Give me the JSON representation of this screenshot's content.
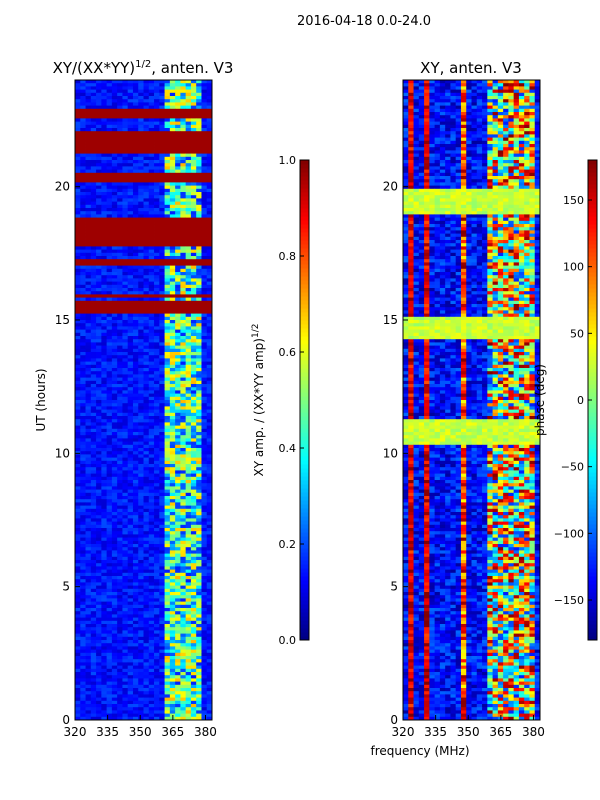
{
  "suptitle": "2016-04-18 0.0-24.0",
  "colors": {
    "jet": [
      "#00007f",
      "#0000ff",
      "#007fff",
      "#00ffff",
      "#7fff7f",
      "#ffff00",
      "#ff7f00",
      "#ff0000",
      "#7f0000"
    ]
  },
  "chart_data": [
    {
      "type": "heatmap",
      "title": "XY/(XX*YY)",
      "title_exp": "1/2",
      "title_suffix": ", anten. V3",
      "xlabel": "",
      "ylabel": "UT (hours)",
      "xlim": [
        320,
        383
      ],
      "ylim": [
        0,
        24
      ],
      "xticks": [
        "320",
        "335",
        "350",
        "365",
        "380"
      ],
      "xtick_values": [
        320,
        335,
        350,
        365,
        380
      ],
      "yticks": [
        "0",
        "5",
        "10",
        "15",
        "20"
      ],
      "ytick_values": [
        0,
        5,
        10,
        15,
        20
      ],
      "colorbar": {
        "label": "XY amp. / (XX*YY amp)",
        "label_exp": "1/2",
        "range": [
          0.0,
          1.0
        ],
        "ticks": [
          "0.0",
          "0.2",
          "0.4",
          "0.6",
          "0.8",
          "1.0"
        ],
        "tick_values": [
          0.0,
          0.2,
          0.4,
          0.6,
          0.8,
          1.0
        ]
      },
      "saturated_ut_bands": [
        [
          22.6,
          22.9
        ],
        [
          21.2,
          22.1
        ],
        [
          20.2,
          20.5
        ],
        [
          17.8,
          18.8
        ],
        [
          17.0,
          17.3
        ],
        [
          15.8,
          16.0
        ],
        [
          15.2,
          15.7
        ]
      ],
      "active_freq_range_mhz": [
        362,
        379
      ]
    },
    {
      "type": "heatmap",
      "title": "XY, anten. V3",
      "xlabel": "frequency (MHz)",
      "ylabel": "",
      "xlim": [
        320,
        383
      ],
      "ylim": [
        0,
        24
      ],
      "xticks": [
        "320",
        "335",
        "350",
        "365",
        "380"
      ],
      "xtick_values": [
        320,
        335,
        350,
        365,
        380
      ],
      "yticks": [
        "0",
        "5",
        "10",
        "15",
        "20"
      ],
      "ytick_values": [
        0,
        5,
        10,
        15,
        20
      ],
      "colorbar": {
        "label": "phase (deg)",
        "range": [
          -180,
          180
        ],
        "ticks": [
          "−150",
          "−100",
          "−50",
          "0",
          "50",
          "100",
          "150"
        ],
        "tick_values": [
          -150,
          -100,
          -50,
          0,
          50,
          100,
          150
        ]
      },
      "green_ut_bands": [
        [
          14.3,
          15.1
        ],
        [
          10.3,
          11.3
        ],
        [
          19.0,
          19.9
        ]
      ],
      "active_freq_range_mhz": [
        358,
        381
      ]
    }
  ]
}
